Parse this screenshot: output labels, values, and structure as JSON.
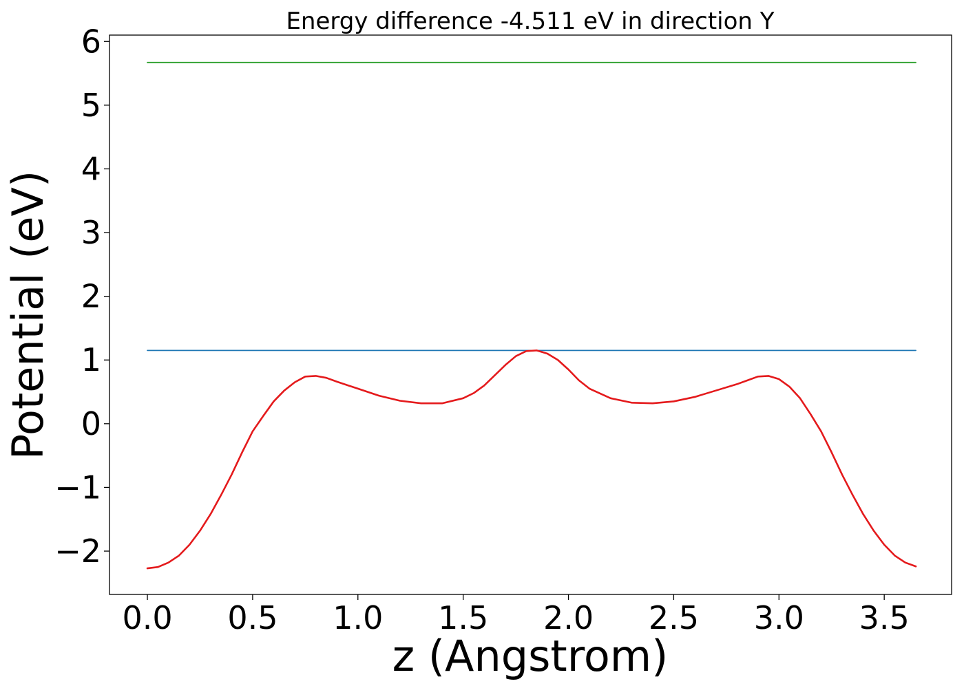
{
  "chart_data": {
    "type": "line",
    "title": "Energy difference -4.511 eV in direction Y",
    "xlabel": "z (Angstrom)",
    "ylabel": "Potential (eV)",
    "xlim": [
      -0.18,
      3.82
    ],
    "ylim": [
      -2.68,
      6.1
    ],
    "xticks": [
      {
        "value": 0.0,
        "label": "0.0"
      },
      {
        "value": 0.5,
        "label": "0.5"
      },
      {
        "value": 1.0,
        "label": "1.0"
      },
      {
        "value": 1.5,
        "label": "1.5"
      },
      {
        "value": 2.0,
        "label": "2.0"
      },
      {
        "value": 2.5,
        "label": "2.5"
      },
      {
        "value": 3.0,
        "label": "3.0"
      },
      {
        "value": 3.5,
        "label": "3.5"
      }
    ],
    "yticks": [
      {
        "value": -2,
        "label": "−2"
      },
      {
        "value": -1,
        "label": "−1"
      },
      {
        "value": 0,
        "label": "0"
      },
      {
        "value": 1,
        "label": "1"
      },
      {
        "value": 2,
        "label": "2"
      },
      {
        "value": 3,
        "label": "3"
      },
      {
        "value": 4,
        "label": "4"
      },
      {
        "value": 5,
        "label": "5"
      },
      {
        "value": 6,
        "label": "6"
      }
    ],
    "grid": false,
    "series": [
      {
        "color": "#2ca02c",
        "x": [
          0.0,
          3.65
        ],
        "y": [
          5.67,
          5.67
        ]
      },
      {
        "color": "#1f77b4",
        "x": [
          0.0,
          3.65
        ],
        "y": [
          1.15,
          1.15
        ]
      },
      {
        "color": "#e41a1c",
        "x": [
          0.0,
          0.05,
          0.1,
          0.15,
          0.2,
          0.25,
          0.3,
          0.35,
          0.4,
          0.45,
          0.5,
          0.55,
          0.6,
          0.65,
          0.7,
          0.75,
          0.8,
          0.85,
          0.9,
          1.0,
          1.1,
          1.2,
          1.3,
          1.4,
          1.5,
          1.55,
          1.6,
          1.7,
          1.75,
          1.8,
          1.85,
          1.9,
          1.95,
          2.0,
          2.05,
          2.1,
          2.2,
          2.3,
          2.4,
          2.5,
          2.6,
          2.7,
          2.8,
          2.85,
          2.9,
          2.95,
          3.0,
          3.05,
          3.1,
          3.15,
          3.2,
          3.25,
          3.3,
          3.35,
          3.4,
          3.45,
          3.5,
          3.55,
          3.6,
          3.65
        ],
        "y": [
          -2.27,
          -2.25,
          -2.18,
          -2.07,
          -1.9,
          -1.68,
          -1.42,
          -1.12,
          -0.8,
          -0.45,
          -0.12,
          0.12,
          0.35,
          0.52,
          0.65,
          0.74,
          0.75,
          0.72,
          0.66,
          0.55,
          0.44,
          0.36,
          0.32,
          0.32,
          0.4,
          0.48,
          0.6,
          0.92,
          1.06,
          1.14,
          1.15,
          1.1,
          1.0,
          0.85,
          0.68,
          0.55,
          0.4,
          0.33,
          0.32,
          0.35,
          0.42,
          0.52,
          0.62,
          0.68,
          0.74,
          0.75,
          0.7,
          0.58,
          0.4,
          0.15,
          -0.12,
          -0.45,
          -0.8,
          -1.12,
          -1.42,
          -1.68,
          -1.9,
          -2.07,
          -2.18,
          -2.24
        ]
      }
    ]
  }
}
